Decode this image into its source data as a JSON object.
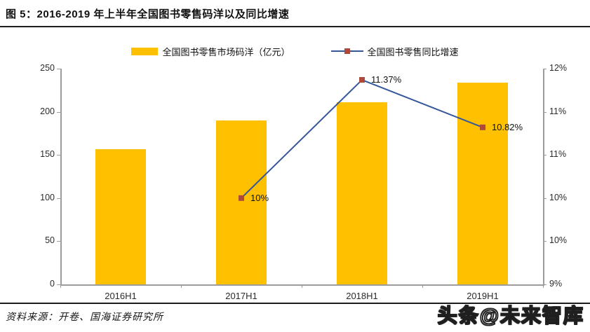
{
  "header": {
    "title": "图 5：2016-2019 年上半年全国图书零售码洋以及同比增速"
  },
  "legend": {
    "bar_label": "全国图书零售市场码洋（亿元）",
    "line_label": "全国图书零售同比增速"
  },
  "chart_data": {
    "type": "bar",
    "subtype": "bar+line combo, dual axis",
    "title": "2016-2019 年上半年全国图书零售码洋以及同比增速",
    "categories": [
      "2016H1",
      "2017H1",
      "2018H1",
      "2019H1"
    ],
    "series": [
      {
        "name": "全国图书零售市场码洋（亿元）",
        "type": "bar",
        "axis": "left",
        "values": [
          157,
          190,
          211,
          234
        ]
      },
      {
        "name": "全国图书零售同比增速",
        "type": "line",
        "axis": "right",
        "values": [
          null,
          10.0,
          11.37,
          10.82
        ],
        "point_labels": [
          "",
          "10%",
          "11.37%",
          "10.82%"
        ]
      }
    ],
    "left_axis": {
      "min": 0,
      "max": 250,
      "step": 50,
      "tick_labels": [
        "0",
        "50",
        "100",
        "150",
        "200",
        "250"
      ]
    },
    "right_axis": {
      "min": 9,
      "max": 11.5,
      "step": 0.5,
      "tick_labels": [
        "9%",
        "10%",
        "10%",
        "11%",
        "11%",
        "12%"
      ]
    },
    "legend_position": "top-center",
    "grid": false,
    "colors": {
      "bar": "#FFC000",
      "line": "#35569B",
      "marker": "#AE4A3C",
      "axis": "#9c9c9c",
      "text": "#2b2b2b"
    }
  },
  "footer": {
    "source": "资料来源：开卷、国海证券研究所"
  },
  "watermark": {
    "text": "头条@未来智库"
  }
}
